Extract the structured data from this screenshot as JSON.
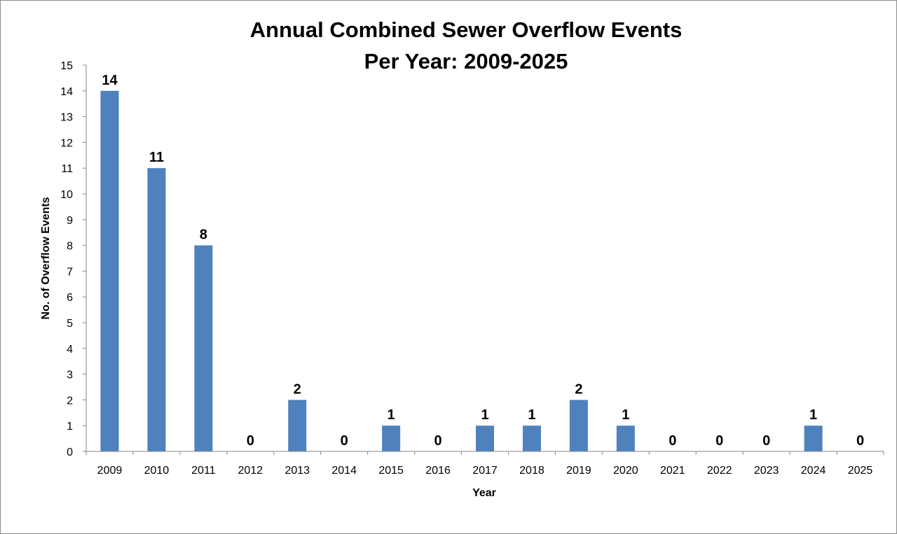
{
  "chart_data": {
    "type": "bar",
    "title": [
      "Annual Combined Sewer Overflow Events",
      "Per Year: 2009-2025"
    ],
    "xlabel": "Year",
    "ylabel": "No. of Overflow Events",
    "categories": [
      "2009",
      "2010",
      "2011",
      "2012",
      "2013",
      "2014",
      "2015",
      "2016",
      "2017",
      "2018",
      "2019",
      "2020",
      "2021",
      "2022",
      "2023",
      "2024",
      "2025"
    ],
    "values": [
      14,
      11,
      8,
      0,
      2,
      0,
      1,
      0,
      1,
      1,
      2,
      1,
      0,
      0,
      0,
      1,
      0
    ],
    "data_labels": [
      "14",
      "11",
      "8",
      "0",
      "2",
      "0",
      "1",
      "0",
      "1",
      "1",
      "2",
      "1",
      "0",
      "0",
      "0",
      "1",
      "0"
    ],
    "ylim": [
      0,
      15
    ],
    "yticks": [
      "0",
      "1",
      "2",
      "3",
      "4",
      "5",
      "6",
      "7",
      "8",
      "9",
      "10",
      "11",
      "12",
      "13",
      "14",
      "15"
    ],
    "grid": false,
    "legend": "none",
    "bar_color": "#4f81bd"
  }
}
